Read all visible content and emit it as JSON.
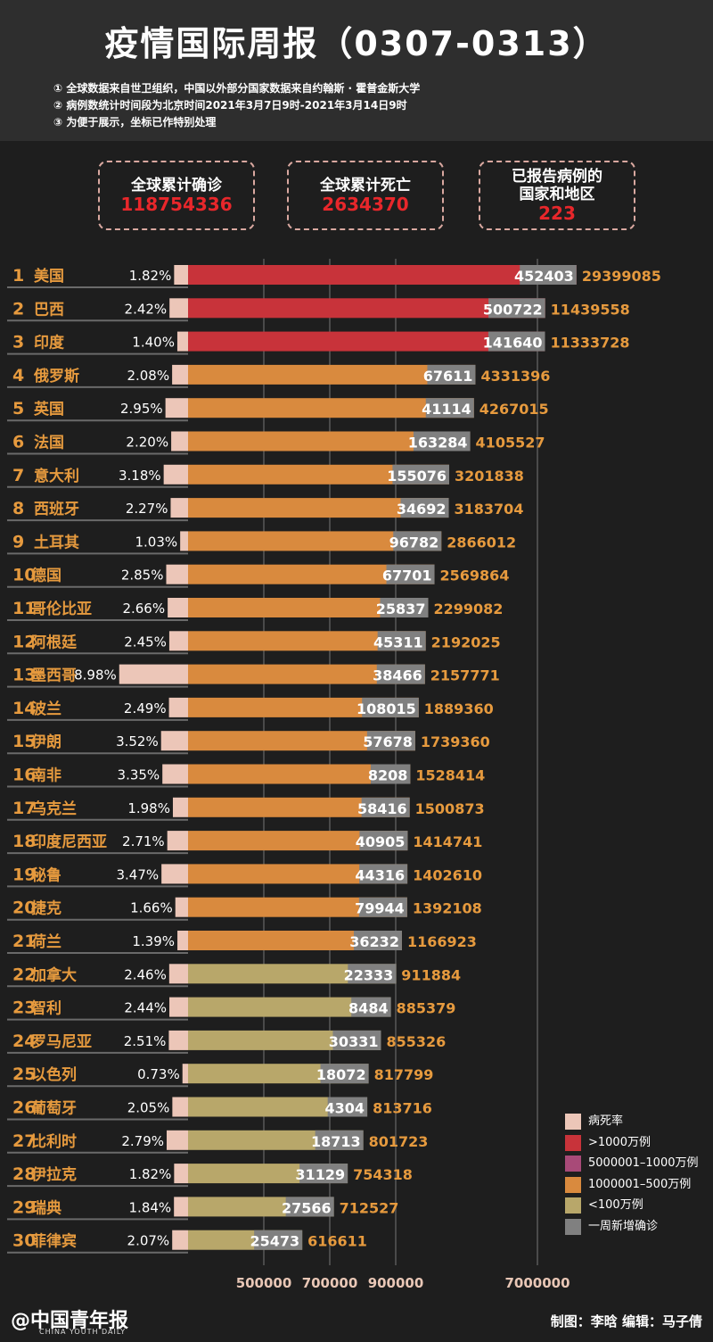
{
  "title": "疫情国际周报（0307-0313）",
  "notes": [
    "① 全球数据来自世卫组织，中国以外部分国家数据来自约翰斯 · 霍普金斯大学",
    "② 病例数统计时间段为北京时间2021年3月7日9时-2021年3月14日9时",
    "③ 为便于展示，坐标已作特别处理"
  ],
  "stats": [
    {
      "label": "全球累计确诊",
      "value": "118754336"
    },
    {
      "label": "全球累计死亡",
      "value": "2634370"
    },
    {
      "label": "已报告病例的国家和地区",
      "value": "223"
    }
  ],
  "colors": {
    "rate": "#ecc6b8",
    "over10m": "#c8333a",
    "5m_10m": "#a84a78",
    "1m_5m": "#d98a3e",
    "under1m": "#b8a76a",
    "weekly": "#808080",
    "total_text": "#e69a3e"
  },
  "legend": [
    {
      "label": "病死率",
      "color": "#ecc6b8"
    },
    {
      "label": ">1000万例",
      "color": "#c8333a"
    },
    {
      "label": "5000001–1000万例",
      "color": "#a84a78"
    },
    {
      "label": "1000001–500万例",
      "color": "#d98a3e"
    },
    {
      "label": "<100万例",
      "color": "#b8a76a"
    },
    {
      "label": "一周新增确诊",
      "color": "#808080"
    }
  ],
  "chart_data": {
    "type": "bar",
    "axis_ticks": [
      "500000",
      "700000",
      "900000",
      "7000000"
    ],
    "rows": [
      {
        "rank": "1",
        "country": "美国",
        "rate": "1.82%",
        "rate_value": 1.82,
        "weekly": "452403",
        "total": "29399085",
        "total_value": 29399085,
        "tier": "over10m"
      },
      {
        "rank": "2",
        "country": "巴西",
        "rate": "2.42%",
        "rate_value": 2.42,
        "weekly": "500722",
        "total": "11439558",
        "total_value": 11439558,
        "tier": "over10m"
      },
      {
        "rank": "3",
        "country": "印度",
        "rate": "1.40%",
        "rate_value": 1.4,
        "weekly": "141640",
        "total": "11333728",
        "total_value": 11333728,
        "tier": "over10m"
      },
      {
        "rank": "4",
        "country": "俄罗斯",
        "rate": "2.08%",
        "rate_value": 2.08,
        "weekly": "67611",
        "total": "4331396",
        "total_value": 4331396,
        "tier": "1m_5m"
      },
      {
        "rank": "5",
        "country": "英国",
        "rate": "2.95%",
        "rate_value": 2.95,
        "weekly": "41114",
        "total": "4267015",
        "total_value": 4267015,
        "tier": "1m_5m"
      },
      {
        "rank": "6",
        "country": "法国",
        "rate": "2.20%",
        "rate_value": 2.2,
        "weekly": "163284",
        "total": "4105527",
        "total_value": 4105527,
        "tier": "1m_5m"
      },
      {
        "rank": "7",
        "country": "意大利",
        "rate": "3.18%",
        "rate_value": 3.18,
        "weekly": "155076",
        "total": "3201838",
        "total_value": 3201838,
        "tier": "1m_5m"
      },
      {
        "rank": "8",
        "country": "西班牙",
        "rate": "2.27%",
        "rate_value": 2.27,
        "weekly": "34692",
        "total": "3183704",
        "total_value": 3183704,
        "tier": "1m_5m"
      },
      {
        "rank": "9",
        "country": "土耳其",
        "rate": "1.03%",
        "rate_value": 1.03,
        "weekly": "96782",
        "total": "2866012",
        "total_value": 2866012,
        "tier": "1m_5m"
      },
      {
        "rank": "10",
        "country": "德国",
        "rate": "2.85%",
        "rate_value": 2.85,
        "weekly": "67701",
        "total": "2569864",
        "total_value": 2569864,
        "tier": "1m_5m"
      },
      {
        "rank": "11",
        "country": "哥伦比亚",
        "rate": "2.66%",
        "rate_value": 2.66,
        "weekly": "25837",
        "total": "2299082",
        "total_value": 2299082,
        "tier": "1m_5m"
      },
      {
        "rank": "12",
        "country": "阿根廷",
        "rate": "2.45%",
        "rate_value": 2.45,
        "weekly": "45311",
        "total": "2192025",
        "total_value": 2192025,
        "tier": "1m_5m"
      },
      {
        "rank": "13",
        "country": "墨西哥",
        "rate": "8.98%",
        "rate_value": 8.98,
        "weekly": "38466",
        "total": "2157771",
        "total_value": 2157771,
        "tier": "1m_5m"
      },
      {
        "rank": "14",
        "country": "波兰",
        "rate": "2.49%",
        "rate_value": 2.49,
        "weekly": "108015",
        "total": "1889360",
        "total_value": 1889360,
        "tier": "1m_5m"
      },
      {
        "rank": "15",
        "country": "伊朗",
        "rate": "3.52%",
        "rate_value": 3.52,
        "weekly": "57678",
        "total": "1739360",
        "total_value": 1739360,
        "tier": "1m_5m"
      },
      {
        "rank": "16",
        "country": "南非",
        "rate": "3.35%",
        "rate_value": 3.35,
        "weekly": "8208",
        "total": "1528414",
        "total_value": 1528414,
        "tier": "1m_5m"
      },
      {
        "rank": "17",
        "country": "乌克兰",
        "rate": "1.98%",
        "rate_value": 1.98,
        "weekly": "58416",
        "total": "1500873",
        "total_value": 1500873,
        "tier": "1m_5m"
      },
      {
        "rank": "18",
        "country": "印度尼西亚",
        "rate": "2.71%",
        "rate_value": 2.71,
        "weekly": "40905",
        "total": "1414741",
        "total_value": 1414741,
        "tier": "1m_5m"
      },
      {
        "rank": "19",
        "country": "秘鲁",
        "rate": "3.47%",
        "rate_value": 3.47,
        "weekly": "44316",
        "total": "1402610",
        "total_value": 1402610,
        "tier": "1m_5m"
      },
      {
        "rank": "20",
        "country": "捷克",
        "rate": "1.66%",
        "rate_value": 1.66,
        "weekly": "79944",
        "total": "1392108",
        "total_value": 1392108,
        "tier": "1m_5m"
      },
      {
        "rank": "21",
        "country": "荷兰",
        "rate": "1.39%",
        "rate_value": 1.39,
        "weekly": "36232",
        "total": "1166923",
        "total_value": 1166923,
        "tier": "1m_5m"
      },
      {
        "rank": "22",
        "country": "加拿大",
        "rate": "2.46%",
        "rate_value": 2.46,
        "weekly": "22333",
        "total": "911884",
        "total_value": 911884,
        "tier": "under1m"
      },
      {
        "rank": "23",
        "country": "智利",
        "rate": "2.44%",
        "rate_value": 2.44,
        "weekly": "8484",
        "total": "885379",
        "total_value": 885379,
        "tier": "under1m"
      },
      {
        "rank": "24",
        "country": "罗马尼亚",
        "rate": "2.51%",
        "rate_value": 2.51,
        "weekly": "30331",
        "total": "855326",
        "total_value": 855326,
        "tier": "under1m"
      },
      {
        "rank": "25",
        "country": "以色列",
        "rate": "0.73%",
        "rate_value": 0.73,
        "weekly": "18072",
        "total": "817799",
        "total_value": 817799,
        "tier": "under1m"
      },
      {
        "rank": "26",
        "country": "葡萄牙",
        "rate": "2.05%",
        "rate_value": 2.05,
        "weekly": "4304",
        "total": "813716",
        "total_value": 813716,
        "tier": "under1m"
      },
      {
        "rank": "27",
        "country": "比利时",
        "rate": "2.79%",
        "rate_value": 2.79,
        "weekly": "18713",
        "total": "801723",
        "total_value": 801723,
        "tier": "under1m"
      },
      {
        "rank": "28",
        "country": "伊拉克",
        "rate": "1.82%",
        "rate_value": 1.82,
        "weekly": "31129",
        "total": "754318",
        "total_value": 754318,
        "tier": "under1m"
      },
      {
        "rank": "29",
        "country": "瑞典",
        "rate": "1.84%",
        "rate_value": 1.84,
        "weekly": "27566",
        "total": "712527",
        "total_value": 712527,
        "tier": "under1m"
      },
      {
        "rank": "30",
        "country": "菲律宾",
        "rate": "2.07%",
        "rate_value": 2.07,
        "weekly": "25473",
        "total": "616611",
        "total_value": 616611,
        "tier": "under1m"
      }
    ]
  },
  "footer": {
    "logo": "@中国青年报",
    "logo_sub": "CHINA YOUTH DAILY",
    "credit": "制图：李晗  编辑：马子倩"
  }
}
